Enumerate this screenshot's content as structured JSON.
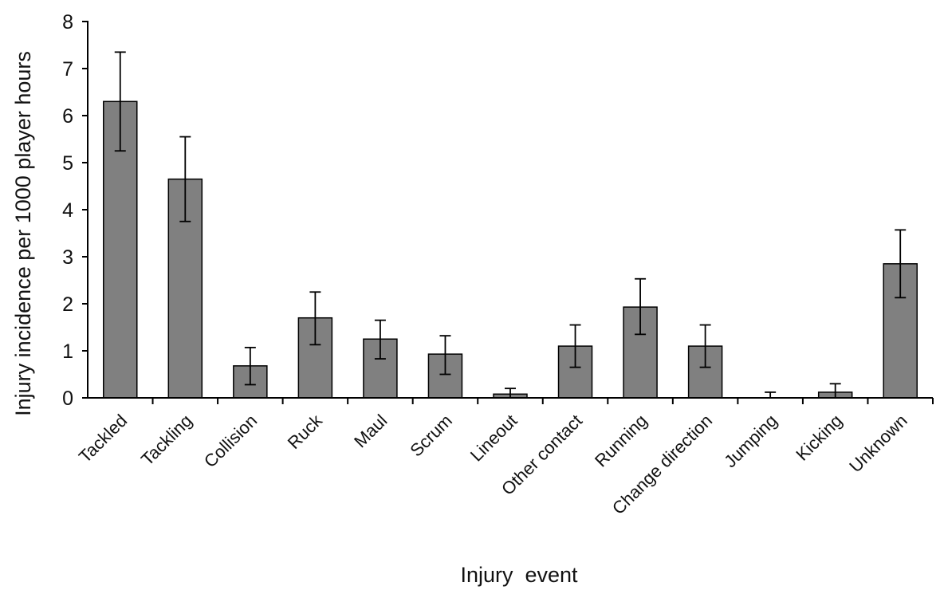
{
  "chart_data": {
    "type": "bar",
    "title": "",
    "xlabel": "Injury  event",
    "ylabel": "Injury incidence per 1000 player hours",
    "ylim": [
      0,
      8
    ],
    "yticks": [
      0,
      1,
      2,
      3,
      4,
      5,
      6,
      7,
      8
    ],
    "grid": false,
    "categories": [
      "Tackled",
      "Tackling",
      "Collision",
      "Ruck",
      "Maul",
      "Scrum",
      "Lineout",
      "Other contact",
      "Running",
      "Change direction",
      "Jumping",
      "Kicking",
      "Unknown"
    ],
    "values": [
      6.3,
      4.65,
      0.68,
      1.7,
      1.25,
      0.93,
      0.08,
      1.1,
      1.93,
      1.1,
      0.0,
      0.12,
      2.85
    ],
    "error_upper": [
      7.35,
      5.55,
      1.07,
      2.25,
      1.65,
      1.32,
      0.2,
      1.55,
      2.53,
      1.55,
      0.12,
      0.3,
      3.57
    ],
    "error_lower": [
      5.25,
      3.75,
      0.28,
      1.13,
      0.83,
      0.5,
      0.0,
      0.65,
      1.35,
      0.65,
      0.0,
      0.0,
      2.13
    ],
    "colors": {
      "bar": "#808080",
      "edge": "#000000"
    }
  }
}
